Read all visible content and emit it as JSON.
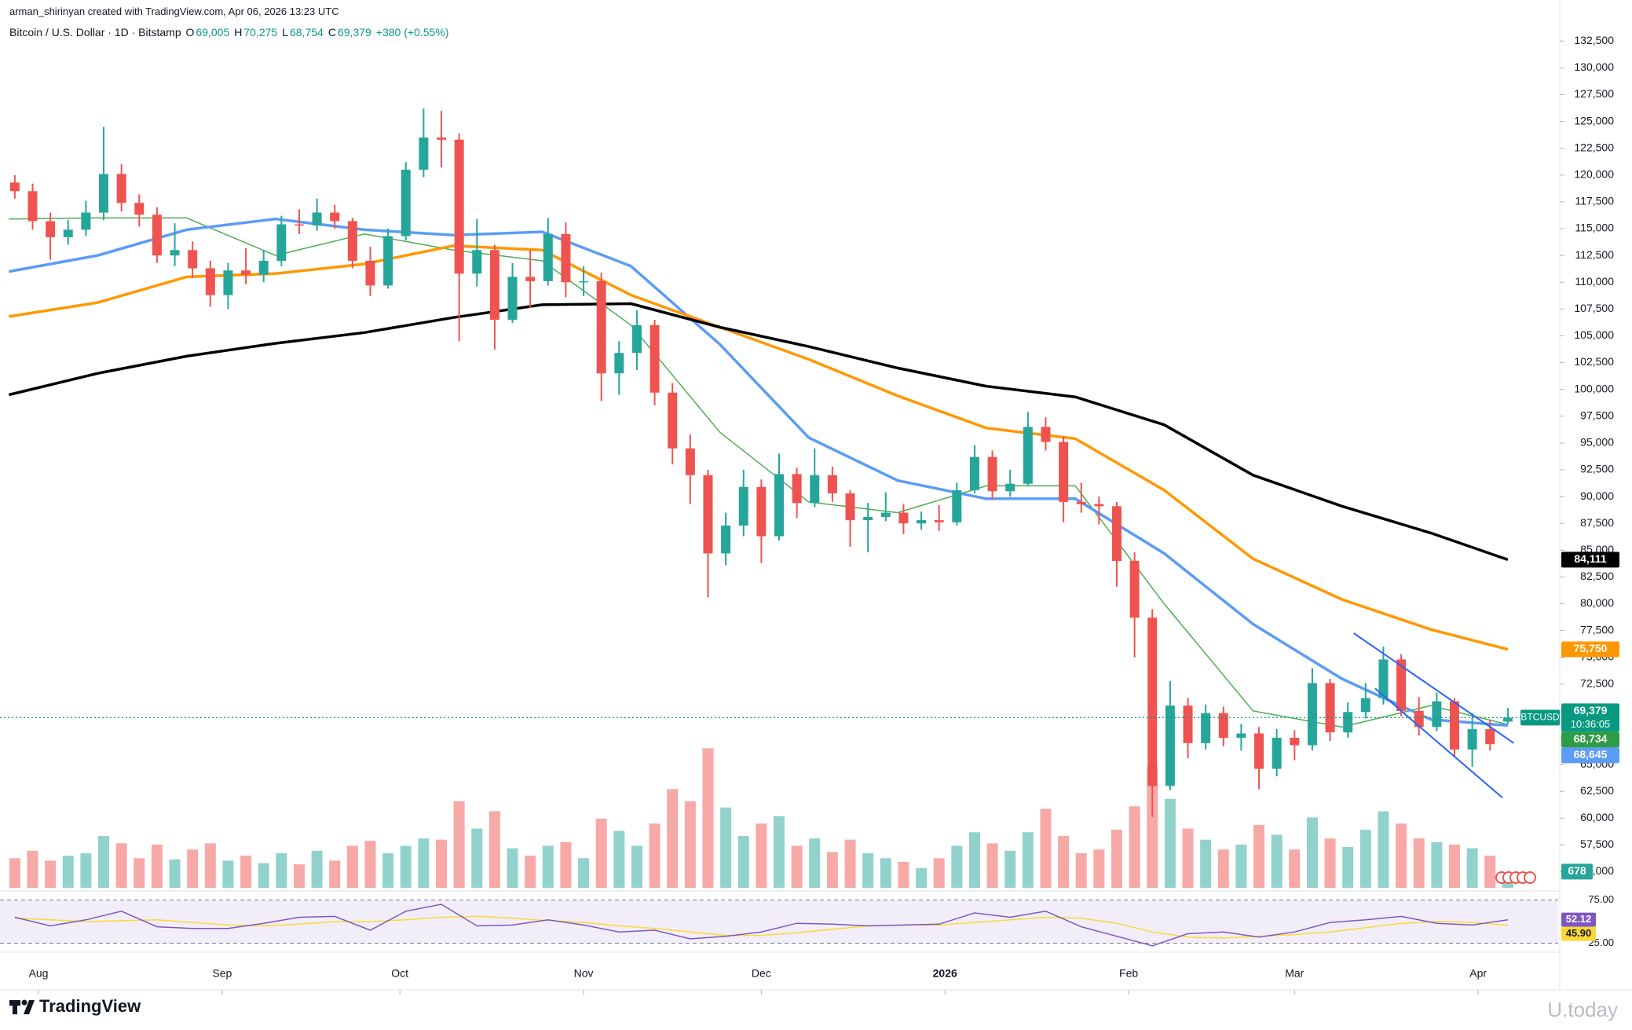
{
  "header": {
    "credit": "arman_shirinyan created with TradingView.com, Apr 06, 2026 13:23 UTC",
    "symbol": "Bitcoin / U.S. Dollar · 1D · Bitstamp",
    "ohlc": [
      {
        "key": "O",
        "value": "69,005"
      },
      {
        "key": "H",
        "value": "70,275"
      },
      {
        "key": "L",
        "value": "68,754"
      },
      {
        "key": "C",
        "value": "69,379"
      }
    ],
    "change": "+380 (+0.55%)"
  },
  "chart_data": {
    "type": "candlestick",
    "x": [
      1,
      4,
      7,
      10,
      13,
      16,
      19,
      22,
      25,
      28,
      31,
      34,
      37,
      40,
      43,
      46,
      49,
      52,
      55,
      58,
      61,
      64,
      67,
      70,
      73,
      76,
      79,
      82,
      85,
      88,
      91,
      94,
      97,
      100,
      103,
      106,
      109,
      112,
      115,
      118,
      121,
      124,
      127,
      130,
      133,
      136,
      139,
      142,
      145,
      148,
      151,
      154,
      157,
      160,
      163,
      166,
      169,
      172,
      175,
      178,
      181,
      184,
      187,
      190,
      193,
      196,
      199,
      202,
      205,
      208,
      211,
      214,
      217,
      220,
      223,
      226,
      229,
      232,
      235,
      238,
      241,
      244,
      247,
      250,
      253
    ],
    "open": [
      119300,
      118500,
      115700,
      114200,
      114900,
      116500,
      120100,
      117400,
      116300,
      112500,
      113000,
      111300,
      108800,
      111100,
      110700,
      112000,
      115400,
      115300,
      116500,
      115700,
      112000,
      109700,
      114300,
      120500,
      123500,
      123300,
      110800,
      113000,
      106500,
      110500,
      110100,
      114500,
      110000,
      110100,
      101500,
      103400,
      106000,
      99700,
      94500,
      92000,
      84700,
      87300,
      90900,
      86300,
      92100,
      89400,
      92000,
      90300,
      87800,
      88100,
      88500,
      87500,
      87800,
      87600,
      90600,
      93700,
      90500,
      91200,
      96500,
      95100,
      89500,
      89300,
      89100,
      84000,
      78700,
      63000,
      70500,
      67000,
      69800,
      67500,
      67900,
      64600,
      67500,
      66800,
      72600,
      68000,
      69900,
      71200,
      74800,
      70000,
      68500,
      70900,
      66400,
      68300,
      69005
    ],
    "high": [
      120000,
      119200,
      116500,
      115800,
      117600,
      124500,
      121000,
      118200,
      117000,
      115500,
      113800,
      112000,
      111800,
      113200,
      113000,
      116200,
      116800,
      117800,
      117200,
      116000,
      113300,
      115000,
      121200,
      126200,
      126000,
      123900,
      115900,
      113500,
      111800,
      113000,
      116000,
      115600,
      111500,
      110900,
      104500,
      107400,
      106500,
      100600,
      95800,
      92500,
      88500,
      92500,
      91600,
      94000,
      92700,
      94500,
      92800,
      90600,
      89400,
      90400,
      89300,
      88600,
      89200,
      91300,
      94800,
      94300,
      92500,
      97900,
      97400,
      95600,
      91300,
      90000,
      89500,
      84800,
      79500,
      72800,
      71200,
      70600,
      70400,
      68800,
      68500,
      68300,
      68200,
      74000,
      73000,
      70800,
      72600,
      76000,
      75300,
      71300,
      71700,
      71200,
      69800,
      69200,
      70275
    ],
    "low": [
      117800,
      114900,
      112100,
      113500,
      114300,
      115800,
      116600,
      115200,
      111800,
      111500,
      110400,
      107700,
      107500,
      109800,
      110000,
      111500,
      114500,
      114800,
      115000,
      111300,
      108700,
      109400,
      113900,
      119800,
      120700,
      104500,
      109600,
      103700,
      106200,
      107600,
      109700,
      108600,
      108700,
      98900,
      99500,
      101800,
      98500,
      93000,
      89300,
      80600,
      83600,
      86300,
      83800,
      85900,
      88000,
      89000,
      89500,
      85300,
      84800,
      87700,
      86500,
      86900,
      86800,
      87300,
      90300,
      89700,
      90000,
      91000,
      94300,
      87600,
      88500,
      87400,
      81600,
      75000,
      60100,
      62600,
      65600,
      66400,
      66700,
      66300,
      62700,
      63900,
      65400,
      66300,
      67200,
      67500,
      69300,
      70600,
      69500,
      67700,
      68100,
      65800,
      64800,
      66300,
      68754
    ],
    "close": [
      118500,
      115700,
      114200,
      114900,
      116500,
      120100,
      117400,
      116300,
      112500,
      113000,
      111300,
      108800,
      111100,
      110700,
      112000,
      115400,
      115300,
      116500,
      115700,
      112000,
      109700,
      114300,
      120500,
      123500,
      123300,
      110800,
      113000,
      106500,
      110500,
      110100,
      114500,
      110000,
      110100,
      101500,
      103400,
      106000,
      99700,
      94500,
      92000,
      84700,
      87300,
      90900,
      86300,
      92100,
      89400,
      92000,
      90300,
      87800,
      88100,
      88500,
      87500,
      87800,
      87600,
      90600,
      93700,
      90500,
      91200,
      96500,
      95100,
      89500,
      89300,
      89100,
      84000,
      78700,
      63000,
      70500,
      67000,
      69800,
      67500,
      67900,
      64600,
      67500,
      66800,
      72600,
      68000,
      69900,
      71200,
      74800,
      70000,
      68500,
      70900,
      66400,
      68300,
      66900,
      69379
    ],
    "up_color": "#26a69a",
    "down_color": "#ef5350",
    "xlim": [
      -1.5,
      261.5
    ],
    "xticks": [
      {
        "value": 5,
        "label": "Aug"
      },
      {
        "value": 36,
        "label": "Sep"
      },
      {
        "value": 66,
        "label": "Oct"
      },
      {
        "value": 97,
        "label": "Nov"
      },
      {
        "value": 127,
        "label": "Dec"
      },
      {
        "value": 158,
        "label": "2026"
      },
      {
        "value": 189,
        "label": "Feb"
      },
      {
        "value": 217,
        "label": "Mar"
      },
      {
        "value": 248,
        "label": "Apr"
      }
    ],
    "ylim": [
      53500,
      133400
    ],
    "yticks": [
      {
        "value": 55000,
        "label": "55,000"
      },
      {
        "value": 57500,
        "label": "57,500"
      },
      {
        "value": 60000,
        "label": "60,000"
      },
      {
        "value": 62500,
        "label": "62,500"
      },
      {
        "value": 65000,
        "label": "65,000"
      },
      {
        "value": 67500,
        "label": "67,500"
      },
      {
        "value": 70000,
        "label": "70,000"
      },
      {
        "value": 72500,
        "label": "72,500"
      },
      {
        "value": 75000,
        "label": "75,000"
      },
      {
        "value": 77500,
        "label": "77,500"
      },
      {
        "value": 80000,
        "label": "80,000"
      },
      {
        "value": 82500,
        "label": "82,500"
      },
      {
        "value": 85000,
        "label": "85,000"
      },
      {
        "value": 87500,
        "label": "87,500"
      },
      {
        "value": 90000,
        "label": "90,000"
      },
      {
        "value": 92500,
        "label": "92,500"
      },
      {
        "value": 95000,
        "label": "95,000"
      },
      {
        "value": 97500,
        "label": "97,500"
      },
      {
        "value": 100000,
        "label": "100,000"
      },
      {
        "value": 102500,
        "label": "102,500"
      },
      {
        "value": 105000,
        "label": "105,000"
      },
      {
        "value": 107500,
        "label": "107,500"
      },
      {
        "value": 110000,
        "label": "110,000"
      },
      {
        "value": 112500,
        "label": "112,500"
      },
      {
        "value": 115000,
        "label": "115,000"
      },
      {
        "value": 117500,
        "label": "117,500"
      },
      {
        "value": 120000,
        "label": "120,000"
      },
      {
        "value": 122500,
        "label": "122,500"
      },
      {
        "value": 125000,
        "label": "125,000"
      },
      {
        "value": 127500,
        "label": "127,500"
      },
      {
        "value": 130000,
        "label": "130,000"
      },
      {
        "value": 132500,
        "label": "132,500"
      }
    ],
    "grid": false,
    "moving_averages": [
      {
        "color": "#4caf50",
        "x": [
          0,
          15,
          30,
          45,
          60,
          75,
          90,
          105,
          120,
          135,
          150,
          165,
          180,
          195,
          210,
          225,
          240,
          253
        ],
        "values": [
          115900,
          116000,
          116000,
          112500,
          114500,
          113000,
          112000,
          106000,
          96000,
          89500,
          88500,
          91000,
          91000,
          80000,
          70000,
          68500,
          70500,
          68734
        ]
      },
      {
        "color": "#5b9cf6",
        "x": [
          0,
          15,
          30,
          45,
          60,
          75,
          90,
          105,
          120,
          135,
          150,
          165,
          180,
          195,
          210,
          225,
          240,
          253
        ],
        "values": [
          111000,
          112500,
          114900,
          115900,
          114900,
          114400,
          114700,
          111500,
          104200,
          95500,
          91500,
          89800,
          89800,
          84700,
          78100,
          73000,
          69200,
          68645
        ]
      },
      {
        "color": "#ff9800",
        "x": [
          0,
          15,
          30,
          45,
          60,
          75,
          90,
          105,
          120,
          135,
          150,
          165,
          180,
          195,
          210,
          225,
          240,
          253
        ],
        "values": [
          106800,
          108100,
          110500,
          110800,
          111700,
          113400,
          113000,
          108800,
          105800,
          102800,
          99400,
          96400,
          95400,
          90600,
          84200,
          80400,
          77600,
          75750
        ]
      },
      {
        "color": "#000000",
        "x": [
          0,
          15,
          30,
          45,
          60,
          75,
          90,
          105,
          120,
          135,
          150,
          165,
          180,
          195,
          210,
          225,
          240,
          253
        ],
        "values": [
          99500,
          101500,
          103100,
          104300,
          105300,
          106700,
          107900,
          108000,
          105800,
          104000,
          102000,
          100300,
          99300,
          96700,
          92000,
          89100,
          86600,
          84111
        ]
      }
    ],
    "trendline_color": "#2962ff",
    "trendlines": [
      {
        "x": [
          227,
          254
        ],
        "values": [
          77250,
          67000
        ]
      },
      {
        "x": [
          230.6,
          252.1
        ],
        "values": [
          72100,
          61900
        ]
      }
    ],
    "last_price": {
      "symbol": "BTCUSD",
      "value": 69379,
      "label": "69,379",
      "countdown": "10:36:05",
      "color": "#089981"
    },
    "price_tags": [
      {
        "label": "84,111",
        "value": 84111,
        "color": "#000000"
      },
      {
        "label": "75,750",
        "value": 75750,
        "color": "#ff9800"
      },
      {
        "label": "68,734",
        "value": 68734,
        "color": "#2e9b47"
      },
      {
        "label": "68,645",
        "value": 68645,
        "color": "#5b9cf6"
      }
    ],
    "volume": {
      "ylim": [
        0,
        21000
      ],
      "up_color": "rgba(38,166,154,0.5)",
      "down_color": "rgba(239,83,80,0.5)",
      "tag_color": "#26a69a",
      "values": [
        2400,
        3000,
        2200,
        2600,
        2800,
        4200,
        3600,
        2400,
        3500,
        2300,
        3100,
        3600,
        2200,
        2600,
        2000,
        2800,
        1900,
        3000,
        2200,
        3400,
        3800,
        2800,
        3400,
        4000,
        3900,
        7000,
        4800,
        6200,
        3200,
        2600,
        3400,
        3700,
        2400,
        5600,
        4600,
        3400,
        5200,
        8000,
        7000,
        11300,
        6500,
        4200,
        5200,
        5800,
        3400,
        4000,
        2900,
        3900,
        2800,
        2400,
        2100,
        1600,
        2400,
        3400,
        4500,
        3600,
        3000,
        4500,
        6400,
        4200,
        2800,
        3100,
        4700,
        6600,
        9800,
        7200,
        4800,
        3900,
        3100,
        3500,
        5100,
        4300,
        3100,
        5700,
        4000,
        3300,
        4700,
        6200,
        5200,
        4000,
        3700,
        3500,
        3200,
        2600,
        678
      ]
    },
    "rsi": {
      "ylim": [
        20,
        80
      ],
      "yticks": [
        {
          "value": 75,
          "label": "75.00"
        },
        {
          "value": 25,
          "label": "25.00"
        }
      ],
      "color": "#7e57c2",
      "ma_color": "#fdd835",
      "x": [
        1,
        7,
        13,
        19,
        25,
        31,
        37,
        43,
        49,
        55,
        61,
        67,
        73,
        79,
        85,
        91,
        97,
        103,
        109,
        115,
        121,
        127,
        133,
        139,
        145,
        151,
        157,
        163,
        169,
        175,
        181,
        187,
        193,
        199,
        205,
        211,
        217,
        223,
        229,
        235,
        241,
        247,
        253
      ],
      "values": [
        55,
        45,
        52,
        62,
        44,
        42,
        42,
        48,
        55,
        56,
        40,
        62,
        70,
        45,
        46,
        52,
        46,
        38,
        40,
        30,
        33,
        38,
        48,
        47,
        45,
        46,
        47,
        60,
        55,
        62,
        44,
        33,
        22,
        36,
        38,
        32,
        38,
        49,
        52,
        56,
        48,
        46,
        52.12
      ],
      "ma_values": [
        54,
        52,
        50,
        51,
        52,
        49,
        46,
        45,
        47,
        50,
        50,
        52,
        55,
        56,
        54,
        51,
        49,
        45,
        42,
        38,
        34,
        34,
        37,
        41,
        45,
        46,
        46,
        49,
        52,
        55,
        54,
        48,
        38,
        32,
        31,
        33,
        35,
        38,
        43,
        48,
        50,
        49,
        45.9
      ],
      "tags": [
        {
          "label": "52.12",
          "value": 52.12,
          "color": "#7e57c2"
        },
        {
          "label": "45.90",
          "value": 45.9,
          "color": "#fdd835"
        }
      ]
    }
  },
  "footer": {
    "logo": "TradingView",
    "watermark": "U.today"
  }
}
